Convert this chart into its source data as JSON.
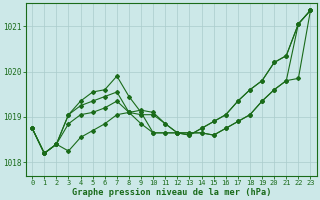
{
  "xlabel": "Graphe pression niveau de la mer (hPa)",
  "background_color": "#cce8e8",
  "plot_bg_color": "#cce8e8",
  "grid_color": "#aacccc",
  "line_color": "#1a6b1a",
  "marker_color": "#1a6b1a",
  "xlim": [
    -0.5,
    23.5
  ],
  "ylim": [
    1017.7,
    1021.5
  ],
  "yticks": [
    1018,
    1019,
    1020,
    1021
  ],
  "xticks": [
    0,
    1,
    2,
    3,
    4,
    5,
    6,
    7,
    8,
    9,
    10,
    11,
    12,
    13,
    14,
    15,
    16,
    17,
    18,
    19,
    20,
    21,
    22,
    23
  ],
  "series": [
    [
      1018.75,
      1018.2,
      1018.4,
      1018.25,
      1018.55,
      1018.7,
      1018.85,
      1019.05,
      1019.1,
      1019.15,
      1019.1,
      1018.85,
      1018.65,
      1018.65,
      1018.65,
      1018.6,
      1018.75,
      1018.9,
      1019.05,
      1019.35,
      1019.6,
      1019.8,
      1019.85,
      1021.35
    ],
    [
      1018.75,
      1018.2,
      1018.4,
      1018.85,
      1019.05,
      1019.1,
      1019.2,
      1019.35,
      1019.1,
      1019.05,
      1019.05,
      1018.85,
      1018.65,
      1018.65,
      1018.65,
      1018.6,
      1018.75,
      1018.9,
      1019.05,
      1019.35,
      1019.6,
      1019.8,
      1021.05,
      1021.35
    ],
    [
      1018.75,
      1018.2,
      1018.4,
      1019.05,
      1019.25,
      1019.35,
      1019.45,
      1019.55,
      1019.1,
      1018.85,
      1018.65,
      1018.65,
      1018.65,
      1018.6,
      1018.75,
      1018.9,
      1019.05,
      1019.35,
      1019.6,
      1019.8,
      1020.2,
      1020.35,
      1021.05,
      1021.35
    ],
    [
      1018.75,
      1018.2,
      1018.4,
      1019.05,
      1019.35,
      1019.55,
      1019.6,
      1019.9,
      1019.45,
      1019.1,
      1018.65,
      1018.65,
      1018.65,
      1018.6,
      1018.75,
      1018.9,
      1019.05,
      1019.35,
      1019.6,
      1019.8,
      1020.2,
      1020.35,
      1021.05,
      1021.35
    ]
  ]
}
